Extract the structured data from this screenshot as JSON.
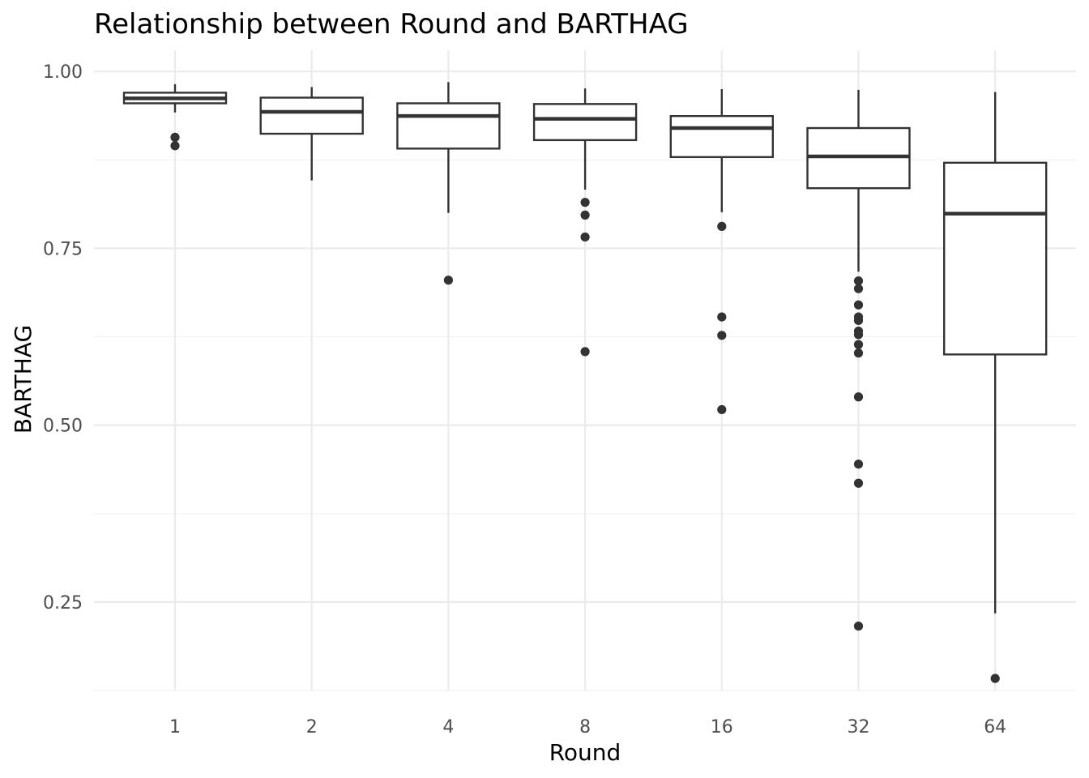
{
  "chart_data": {
    "type": "boxplot",
    "title": "Relationship between Round and BARTHAG",
    "xlabel": "Round",
    "ylabel": "BARTHAG",
    "ylim": [
      0.125,
      1.03
    ],
    "y_ticks": [
      0.25,
      0.5,
      0.75,
      1.0
    ],
    "y_tick_labels": [
      "0.25",
      "0.50",
      "0.75",
      "1.00"
    ],
    "grid": true,
    "legend": "none",
    "categories": [
      "1",
      "2",
      "4",
      "8",
      "16",
      "32",
      "64"
    ],
    "boxes": [
      {
        "category": "1",
        "whisker_low": 0.942,
        "q1": 0.955,
        "median": 0.962,
        "q3": 0.97,
        "whisker_high": 0.982,
        "outliers": [
          0.907,
          0.895
        ]
      },
      {
        "category": "2",
        "whisker_low": 0.846,
        "q1": 0.912,
        "median": 0.943,
        "q3": 0.963,
        "whisker_high": 0.978,
        "outliers": []
      },
      {
        "category": "4",
        "whisker_low": 0.8,
        "q1": 0.891,
        "median": 0.937,
        "q3": 0.955,
        "whisker_high": 0.985,
        "outliers": [
          0.705
        ]
      },
      {
        "category": "8",
        "whisker_low": 0.833,
        "q1": 0.903,
        "median": 0.933,
        "q3": 0.954,
        "whisker_high": 0.976,
        "outliers": [
          0.815,
          0.797,
          0.766,
          0.604
        ]
      },
      {
        "category": "16",
        "whisker_low": 0.801,
        "q1": 0.879,
        "median": 0.92,
        "q3": 0.937,
        "whisker_high": 0.975,
        "outliers": [
          0.781,
          0.653,
          0.627,
          0.522
        ]
      },
      {
        "category": "32",
        "whisker_low": 0.717,
        "q1": 0.835,
        "median": 0.88,
        "q3": 0.92,
        "whisker_high": 0.974,
        "outliers": [
          0.704,
          0.693,
          0.67,
          0.653,
          0.648,
          0.633,
          0.628,
          0.614,
          0.602,
          0.54,
          0.445,
          0.418,
          0.216
        ]
      },
      {
        "category": "64",
        "whisker_low": 0.234,
        "q1": 0.6,
        "median": 0.799,
        "q3": 0.871,
        "whisker_high": 0.971,
        "outliers": [
          0.142
        ]
      }
    ],
    "colors": {
      "box_stroke": "#333333",
      "box_fill": "#ffffff",
      "grid": "#ebebeb",
      "tick_text": "#4d4d4d"
    }
  }
}
